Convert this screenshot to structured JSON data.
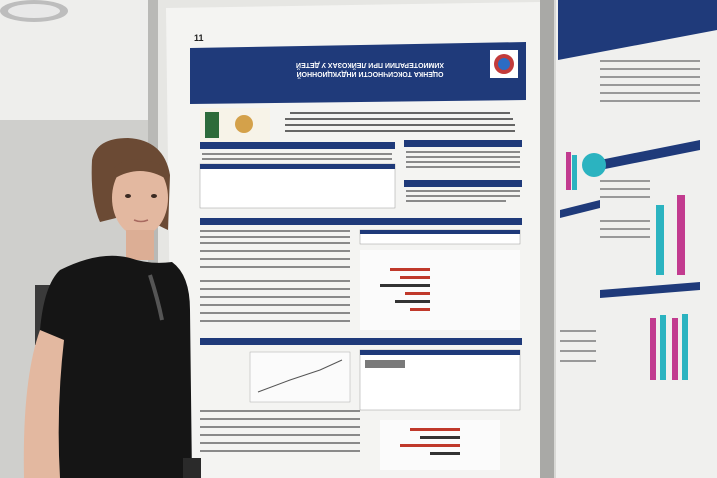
{
  "poster": {
    "number": "11",
    "title": "ОЦЕНКА ТОКСИЧНОСТИ ИНДУКЦИОННОЙ ХИМИОТЕРАПИИ ПРИ ЛЕЙКОЗАХ У ДЕТЕЙ"
  },
  "colors": {
    "poster_header": "#1f3a7a",
    "poster_paper": "#f4f4f2",
    "wall": "#dcdcd8",
    "shirt": "#151515"
  }
}
